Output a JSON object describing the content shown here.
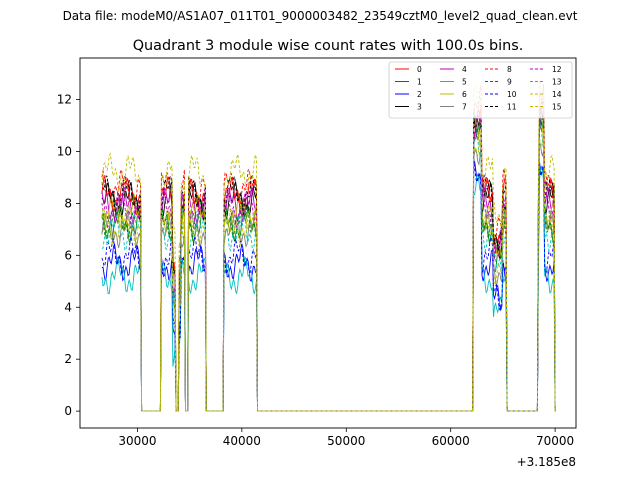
{
  "figure": {
    "suptitle": "Data file: modeM0/AS1A07_011T01_9000003482_23549cztM0_level2_quad_clean.evt"
  },
  "chart_data": {
    "type": "line",
    "title": "Quadrant 3 module wise count rates with 100.0s bins.",
    "xlabel": "",
    "ylabel": "",
    "x_offset_label": "+3.185e8",
    "xlim": [
      24500,
      72000
    ],
    "ylim": [
      -0.65,
      13.6
    ],
    "x_ticks": [
      30000,
      40000,
      50000,
      60000,
      70000
    ],
    "x_tick_labels": [
      "30000",
      "40000",
      "50000",
      "60000",
      "70000"
    ],
    "y_ticks": [
      0,
      2,
      4,
      6,
      8,
      10,
      12
    ],
    "y_tick_labels": [
      "0",
      "2",
      "4",
      "6",
      "8",
      "10",
      "12"
    ],
    "grid": false,
    "legend_position": "top-right",
    "legend_columns": 4,
    "data_segments": [
      [
        26600,
        30300
      ],
      [
        32300,
        33600
      ],
      [
        34000,
        34500
      ],
      [
        34900,
        36500
      ],
      [
        38300,
        41400
      ],
      [
        62200,
        65300
      ],
      [
        68400,
        69900
      ]
    ],
    "gap_level": 0,
    "series": [
      {
        "name": "0",
        "color": "#ff0000",
        "dashed": false,
        "level": 8.3
      },
      {
        "name": "1",
        "color": "#008000",
        "dashed": false,
        "level": 7.2
      },
      {
        "name": "2",
        "color": "#0000ff",
        "dashed": false,
        "level": 5.7
      },
      {
        "name": "3",
        "color": "#000000",
        "dashed": false,
        "level": 8.1
      },
      {
        "name": "4",
        "color": "#bf00bf",
        "dashed": false,
        "level": 7.9
      },
      {
        "name": "5",
        "color": "#00bfbf",
        "dashed": false,
        "level": 5.2
      },
      {
        "name": "6",
        "color": "#bfbf00",
        "dashed": false,
        "level": 7.6
      },
      {
        "name": "7",
        "color": "#808080",
        "dashed": false,
        "level": 7.0
      },
      {
        "name": "8",
        "color": "#ff0000",
        "dashed": true,
        "level": 8.6
      },
      {
        "name": "9",
        "color": "#008000",
        "dashed": true,
        "level": 7.4
      },
      {
        "name": "10",
        "color": "#0000ff",
        "dashed": true,
        "level": 6.0
      },
      {
        "name": "11",
        "color": "#000000",
        "dashed": true,
        "level": 8.4
      },
      {
        "name": "12",
        "color": "#bf00bf",
        "dashed": true,
        "level": 7.8
      },
      {
        "name": "13",
        "color": "#00bfbf",
        "dashed": true,
        "level": 6.9
      },
      {
        "name": "14",
        "color": "#bfbf00",
        "dashed": true,
        "level": 9.2
      },
      {
        "name": "15",
        "color": "#bfbf00",
        "dashed": true,
        "level": 7.1
      }
    ]
  }
}
